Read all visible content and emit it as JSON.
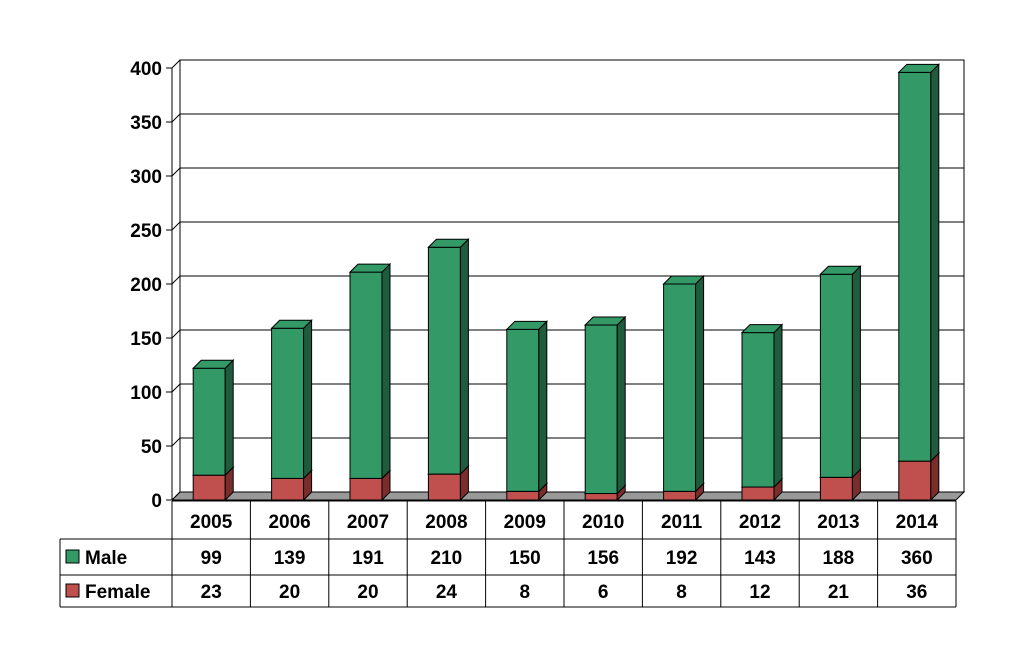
{
  "chart_data": {
    "type": "bar",
    "stacked": true,
    "three_d": true,
    "categories": [
      "2005",
      "2006",
      "2007",
      "2008",
      "2009",
      "2010",
      "2011",
      "2012",
      "2013",
      "2014"
    ],
    "series": [
      {
        "name": "Male",
        "values": [
          99,
          139,
          191,
          210,
          150,
          156,
          192,
          143,
          188,
          360
        ]
      },
      {
        "name": "Female",
        "values": [
          23,
          20,
          20,
          24,
          8,
          6,
          8,
          12,
          21,
          36
        ]
      }
    ],
    "ylim": [
      0,
      400
    ],
    "yticks": [
      "0",
      "50",
      "100",
      "150",
      "200",
      "250",
      "300",
      "350",
      "400"
    ],
    "grid": true,
    "data_table": true
  },
  "colors": {
    "Male": "#339966",
    "Male_dark": "#1f5c3d",
    "Female": "#c0504d",
    "Female_dark": "#7a2e2c",
    "floor": "#999999"
  }
}
